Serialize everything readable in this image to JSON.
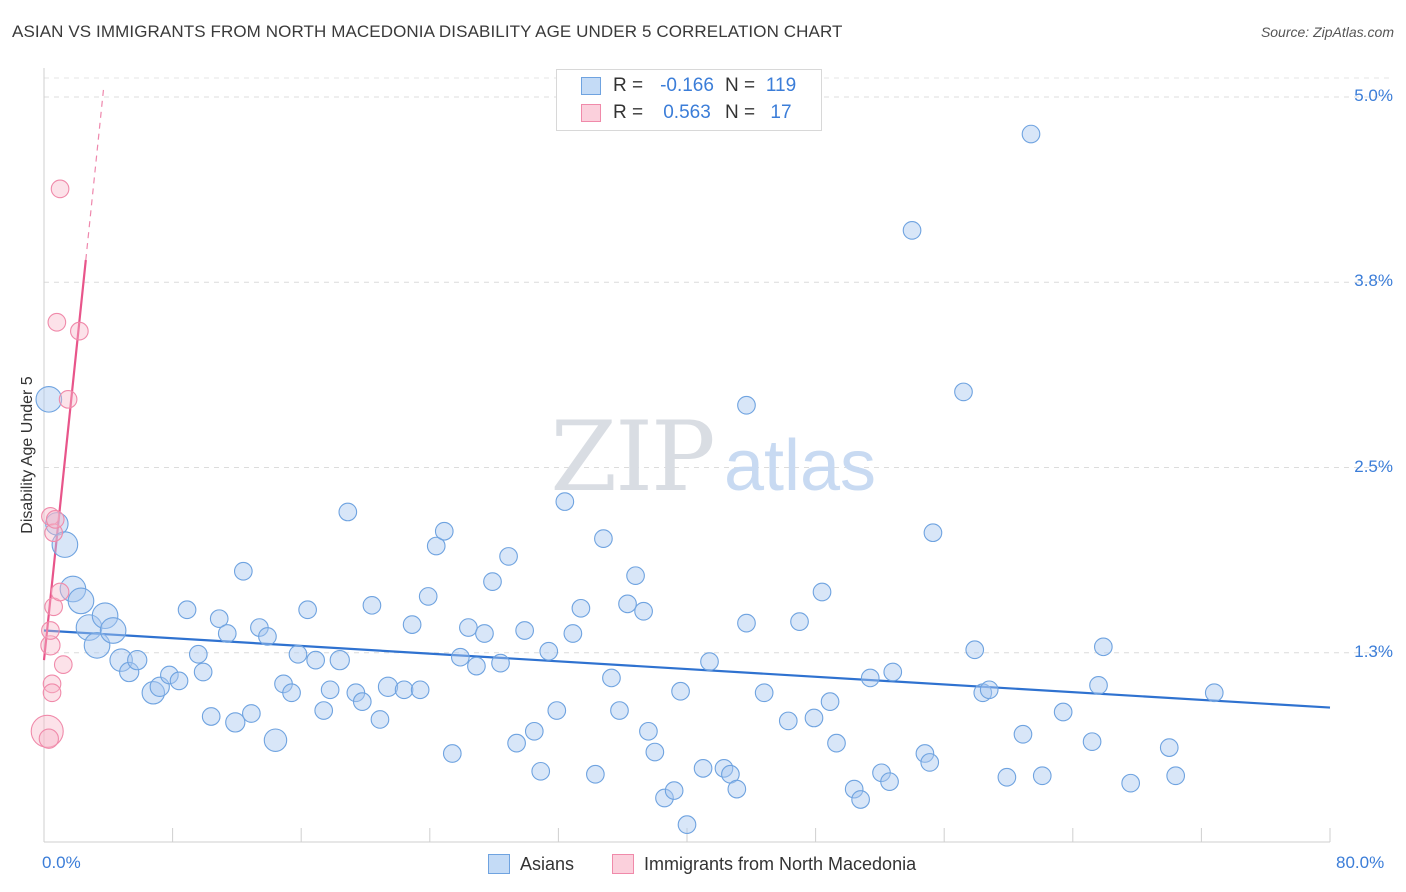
{
  "title": "ASIAN VS IMMIGRANTS FROM NORTH MACEDONIA DISABILITY AGE UNDER 5 CORRELATION CHART",
  "source": "Source: ZipAtlas.com",
  "watermark": {
    "zip": "ZIP",
    "atlas": "atlas"
  },
  "legend": {
    "rows": [
      {
        "r_label": "R =",
        "r_value": "-0.166",
        "n_label": "N =",
        "n_value": "119",
        "color": "#a8c8f0"
      },
      {
        "r_label": "R =",
        "r_value": "0.563",
        "n_label": "N =",
        "n_value": "17",
        "color": "#f7b6c8"
      }
    ]
  },
  "bottom_legend": [
    {
      "label": "Asians",
      "color": "#a8c8f0"
    },
    {
      "label": "Immigrants from North Macedonia",
      "color": "#f7b6c8"
    }
  ],
  "chart_data": {
    "type": "scatter",
    "title": "ASIAN VS IMMIGRANTS FROM NORTH MACEDONIA DISABILITY AGE UNDER 5 CORRELATION CHART",
    "xlabel": "",
    "ylabel": "Disability Age Under 5",
    "xlim": [
      0,
      80
    ],
    "ylim": [
      0,
      5.0
    ],
    "x_tick_labels": [
      "0.0%",
      "80.0%"
    ],
    "y_tick_labels": [
      "1.3%",
      "2.5%",
      "3.8%",
      "5.0%"
    ],
    "y_ticks": [
      1.25,
      2.5,
      3.75,
      5.0
    ],
    "x_minor_ticks": [
      0,
      8,
      16,
      24,
      32,
      40,
      48,
      56,
      64,
      72,
      80
    ],
    "grid": true,
    "series": [
      {
        "name": "Asians",
        "color": "#6fa3e0",
        "fill": "rgba(168,200,240,0.45)",
        "trend": {
          "x": [
            0,
            80
          ],
          "y": [
            1.4,
            0.88
          ],
          "style": "solid",
          "color": "#2f72d0"
        },
        "points": [
          [
            0.3,
            2.96,
            1.6
          ],
          [
            0.8,
            2.12,
            1.4
          ],
          [
            1.3,
            1.98,
            1.6
          ],
          [
            1.8,
            1.68,
            1.6
          ],
          [
            2.3,
            1.6,
            1.6
          ],
          [
            2.8,
            1.42,
            1.6
          ],
          [
            3.3,
            1.3,
            1.6
          ],
          [
            3.8,
            1.5,
            1.6
          ],
          [
            4.3,
            1.4,
            1.6
          ],
          [
            4.8,
            1.2,
            1.4
          ],
          [
            5.3,
            1.12,
            1.2
          ],
          [
            5.8,
            1.2,
            1.2
          ],
          [
            6.8,
            0.98,
            1.4
          ],
          [
            7.2,
            1.02,
            1.2
          ],
          [
            7.8,
            1.1,
            1.1
          ],
          [
            8.4,
            1.06,
            1.1
          ],
          [
            8.9,
            1.54,
            1.1
          ],
          [
            9.6,
            1.24,
            1.1
          ],
          [
            9.9,
            1.12,
            1.1
          ],
          [
            10.4,
            0.82,
            1.1
          ],
          [
            10.9,
            1.48,
            1.1
          ],
          [
            11.4,
            1.38,
            1.1
          ],
          [
            11.9,
            0.78,
            1.2
          ],
          [
            12.4,
            1.8,
            1.1
          ],
          [
            12.9,
            0.84,
            1.1
          ],
          [
            13.4,
            1.42,
            1.1
          ],
          [
            13.9,
            1.36,
            1.1
          ],
          [
            14.4,
            0.66,
            1.4
          ],
          [
            14.9,
            1.04,
            1.1
          ],
          [
            15.4,
            0.98,
            1.1
          ],
          [
            15.8,
            1.24,
            1.1
          ],
          [
            16.4,
            1.54,
            1.1
          ],
          [
            16.9,
            1.2,
            1.1
          ],
          [
            17.4,
            0.86,
            1.1
          ],
          [
            17.8,
            1.0,
            1.1
          ],
          [
            18.4,
            1.2,
            1.2
          ],
          [
            18.9,
            2.2,
            1.1
          ],
          [
            19.4,
            0.98,
            1.1
          ],
          [
            19.8,
            0.92,
            1.1
          ],
          [
            20.4,
            1.57,
            1.1
          ],
          [
            20.9,
            0.8,
            1.1
          ],
          [
            21.4,
            1.02,
            1.2
          ],
          [
            22.4,
            1.0,
            1.1
          ],
          [
            22.9,
            1.44,
            1.1
          ],
          [
            23.4,
            1.0,
            1.1
          ],
          [
            23.9,
            1.63,
            1.1
          ],
          [
            24.4,
            1.97,
            1.1
          ],
          [
            24.9,
            2.07,
            1.1
          ],
          [
            25.4,
            0.57,
            1.1
          ],
          [
            25.9,
            1.22,
            1.1
          ],
          [
            26.4,
            1.42,
            1.1
          ],
          [
            26.9,
            1.16,
            1.1
          ],
          [
            27.4,
            1.38,
            1.1
          ],
          [
            27.9,
            1.73,
            1.1
          ],
          [
            28.4,
            1.18,
            1.1
          ],
          [
            28.9,
            1.9,
            1.1
          ],
          [
            29.4,
            0.64,
            1.1
          ],
          [
            29.9,
            1.4,
            1.1
          ],
          [
            30.5,
            0.72,
            1.1
          ],
          [
            30.9,
            0.45,
            1.1
          ],
          [
            31.4,
            1.26,
            1.1
          ],
          [
            31.9,
            0.86,
            1.1
          ],
          [
            32.4,
            2.27,
            1.1
          ],
          [
            32.9,
            1.38,
            1.1
          ],
          [
            33.4,
            1.55,
            1.1
          ],
          [
            34.3,
            0.43,
            1.1
          ],
          [
            34.8,
            2.02,
            1.1
          ],
          [
            35.3,
            1.08,
            1.1
          ],
          [
            35.8,
            0.86,
            1.1
          ],
          [
            36.3,
            1.58,
            1.1
          ],
          [
            36.8,
            1.77,
            1.1
          ],
          [
            37.3,
            1.53,
            1.1
          ],
          [
            37.6,
            0.72,
            1.1
          ],
          [
            38.0,
            0.58,
            1.1
          ],
          [
            38.6,
            0.27,
            1.1
          ],
          [
            39.2,
            0.32,
            1.1
          ],
          [
            39.6,
            0.99,
            1.1
          ],
          [
            40.0,
            0.09,
            1.1
          ],
          [
            41.0,
            0.47,
            1.1
          ],
          [
            41.4,
            1.19,
            1.1
          ],
          [
            42.3,
            0.47,
            1.1
          ],
          [
            42.7,
            0.43,
            1.1
          ],
          [
            43.1,
            0.33,
            1.1
          ],
          [
            43.7,
            2.92,
            1.1
          ],
          [
            43.7,
            1.45,
            1.1
          ],
          [
            44.8,
            0.98,
            1.1
          ],
          [
            46.3,
            0.79,
            1.1
          ],
          [
            47.0,
            1.46,
            1.1
          ],
          [
            47.9,
            0.81,
            1.1
          ],
          [
            48.4,
            1.66,
            1.1
          ],
          [
            48.9,
            0.92,
            1.1
          ],
          [
            49.3,
            0.64,
            1.1
          ],
          [
            50.4,
            0.33,
            1.1
          ],
          [
            50.8,
            0.26,
            1.1
          ],
          [
            51.4,
            1.08,
            1.1
          ],
          [
            52.1,
            0.44,
            1.1
          ],
          [
            52.6,
            0.38,
            1.1
          ],
          [
            52.8,
            1.12,
            1.1
          ],
          [
            54.0,
            4.1,
            1.1
          ],
          [
            54.8,
            0.57,
            1.1
          ],
          [
            55.1,
            0.51,
            1.1
          ],
          [
            55.3,
            2.06,
            1.1
          ],
          [
            57.2,
            3.01,
            1.1
          ],
          [
            57.9,
            1.27,
            1.1
          ],
          [
            58.4,
            0.98,
            1.1
          ],
          [
            58.8,
            1.0,
            1.1
          ],
          [
            59.9,
            0.41,
            1.1
          ],
          [
            60.9,
            0.7,
            1.1
          ],
          [
            61.4,
            4.75,
            1.1
          ],
          [
            62.1,
            0.42,
            1.1
          ],
          [
            63.4,
            0.85,
            1.1
          ],
          [
            65.2,
            0.65,
            1.1
          ],
          [
            65.6,
            1.03,
            1.1
          ],
          [
            65.9,
            1.29,
            1.1
          ],
          [
            67.6,
            0.37,
            1.1
          ],
          [
            70.0,
            0.61,
            1.1
          ],
          [
            70.4,
            0.42,
            1.1
          ],
          [
            72.8,
            0.98,
            1.1
          ]
        ]
      },
      {
        "name": "Immigrants from North Macedonia",
        "color": "#f08aaa",
        "fill": "rgba(247,182,200,0.4)",
        "trend": {
          "x": [
            0,
            2.6
          ],
          "y": [
            1.2,
            3.9
          ],
          "style": "solid",
          "color": "#e8558a",
          "extension": {
            "x": [
              2.6,
              3.7
            ],
            "y": [
              3.9,
              5.05
            ],
            "style": "dashed"
          }
        },
        "points": [
          [
            0.2,
            0.72,
            2.0
          ],
          [
            0.3,
            0.67,
            1.2
          ],
          [
            0.4,
            1.3,
            1.2
          ],
          [
            0.4,
            1.4,
            1.1
          ],
          [
            0.4,
            2.17,
            1.1
          ],
          [
            0.5,
            1.04,
            1.1
          ],
          [
            0.5,
            0.98,
            1.1
          ],
          [
            0.6,
            2.06,
            1.1
          ],
          [
            0.6,
            1.56,
            1.1
          ],
          [
            0.7,
            2.15,
            1.1
          ],
          [
            0.8,
            3.48,
            1.1
          ],
          [
            1.0,
            4.38,
            1.1
          ],
          [
            1.0,
            1.66,
            1.1
          ],
          [
            1.2,
            1.17,
            1.1
          ],
          [
            1.5,
            2.96,
            1.1
          ],
          [
            2.2,
            3.42,
            1.1
          ]
        ]
      }
    ]
  }
}
